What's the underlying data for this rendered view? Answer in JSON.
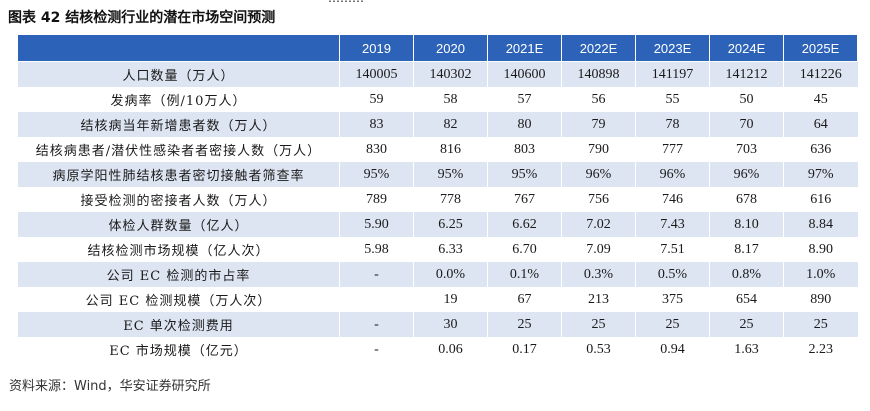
{
  "caption": "图表 42 结核检测行业的潜在市场空间预测",
  "columns": [
    "",
    "2019",
    "2020",
    "2021E",
    "2022E",
    "2023E",
    "2024E",
    "2025E"
  ],
  "rows": [
    {
      "label": "人口数量（万人）",
      "values": [
        "140005",
        "140302",
        "140600",
        "140898",
        "141197",
        "141212",
        "141226"
      ]
    },
    {
      "label": "发病率（例/10万人）",
      "values": [
        "59",
        "58",
        "57",
        "56",
        "55",
        "50",
        "45"
      ]
    },
    {
      "label": "结核病当年新增患者数（万人）",
      "values": [
        "83",
        "82",
        "80",
        "79",
        "78",
        "70",
        "64"
      ]
    },
    {
      "label": "结核病患者/潜伏性感染者者密接人数（万人）",
      "values": [
        "830",
        "816",
        "803",
        "790",
        "777",
        "703",
        "636"
      ]
    },
    {
      "label": "病原学阳性肺结核患者密切接触者筛查率",
      "values": [
        "95%",
        "95%",
        "95%",
        "96%",
        "96%",
        "96%",
        "97%"
      ]
    },
    {
      "label": "接受检测的密接者人数（万人）",
      "values": [
        "789",
        "778",
        "767",
        "756",
        "746",
        "678",
        "616"
      ]
    },
    {
      "label": "体检人群数量（亿人）",
      "values": [
        "5.90",
        "6.25",
        "6.62",
        "7.02",
        "7.43",
        "8.10",
        "8.84"
      ]
    },
    {
      "label": "结核检测市场规模（亿人次）",
      "values": [
        "5.98",
        "6.33",
        "6.70",
        "7.09",
        "7.51",
        "8.17",
        "8.90"
      ]
    },
    {
      "label": "公司 EC 检测的市占率",
      "values": [
        "-",
        "0.0%",
        "0.1%",
        "0.3%",
        "0.5%",
        "0.8%",
        "1.0%"
      ]
    },
    {
      "label": "公司 EC 检测规模（万人次）",
      "values": [
        "",
        "19",
        "67",
        "213",
        "375",
        "654",
        "890"
      ]
    },
    {
      "label": "EC 单次检测费用",
      "values": [
        "-",
        "30",
        "25",
        "25",
        "25",
        "25",
        "25"
      ]
    },
    {
      "label": "EC 市场规模（亿元）",
      "values": [
        "-",
        "0.06",
        "0.17",
        "0.53",
        "0.94",
        "1.63",
        "2.23"
      ]
    }
  ],
  "source": "资料来源：Wind，华安证券研究所",
  "colors": {
    "header_bg": "#2c63b8",
    "shade_bg": "#dde5f2"
  }
}
